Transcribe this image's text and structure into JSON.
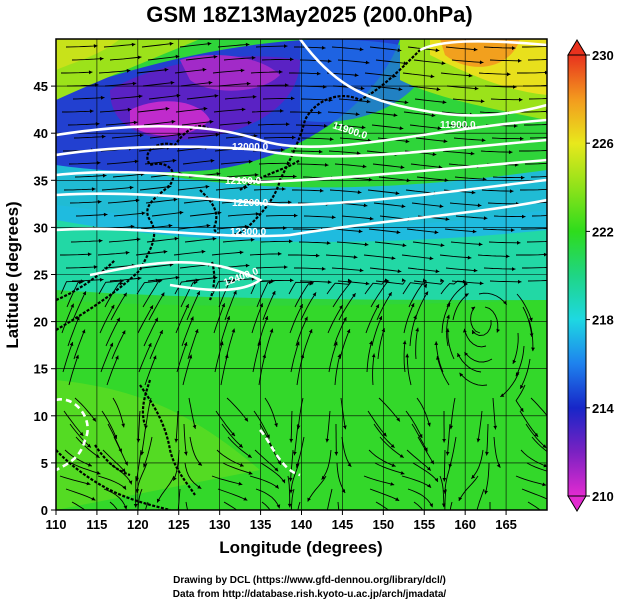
{
  "title": "GSM 18Z13May2025 (200.0hPa)",
  "x_axis_label": "Longitude (degrees)",
  "y_axis_label": "Latitude  (degrees)",
  "x_ticks": [
    "110",
    "115",
    "120",
    "125",
    "130",
    "135",
    "140",
    "145",
    "150",
    "155",
    "160",
    "165"
  ],
  "y_ticks": [
    "0",
    "5",
    "10",
    "15",
    "20",
    "25",
    "30",
    "35",
    "40",
    "45"
  ],
  "colorbar": {
    "labels": [
      "230",
      "226",
      "222",
      "218",
      "214",
      "210"
    ],
    "stops": [
      {
        "v": 210,
        "color": "#e22bd0"
      },
      {
        "v": 212,
        "color": "#7a21c2"
      },
      {
        "v": 214,
        "color": "#1726c8"
      },
      {
        "v": 216,
        "color": "#1e82ee"
      },
      {
        "v": 218,
        "color": "#1ed8e2"
      },
      {
        "v": 220,
        "color": "#1fd585"
      },
      {
        "v": 222,
        "color": "#2edc1c"
      },
      {
        "v": 224,
        "color": "#8fe21a"
      },
      {
        "v": 226,
        "color": "#e8e81c"
      },
      {
        "v": 228,
        "color": "#f39a1e"
      },
      {
        "v": 230,
        "color": "#e8321e"
      }
    ]
  },
  "contours": [
    {
      "label": "11900.0"
    },
    {
      "label": "11900.0"
    },
    {
      "label": "12000.0"
    },
    {
      "label": "12100.0"
    },
    {
      "label": "12200.0"
    },
    {
      "label": "12300.0"
    },
    {
      "label": "12400.0"
    }
  ],
  "credits": {
    "line1": "Drawing by DCL (https://www.gfd-dennou.org/library/dcl/)",
    "line2": "Data from http://database.rish.kyoto-u.ac.jp/arch/jmadata/"
  }
}
